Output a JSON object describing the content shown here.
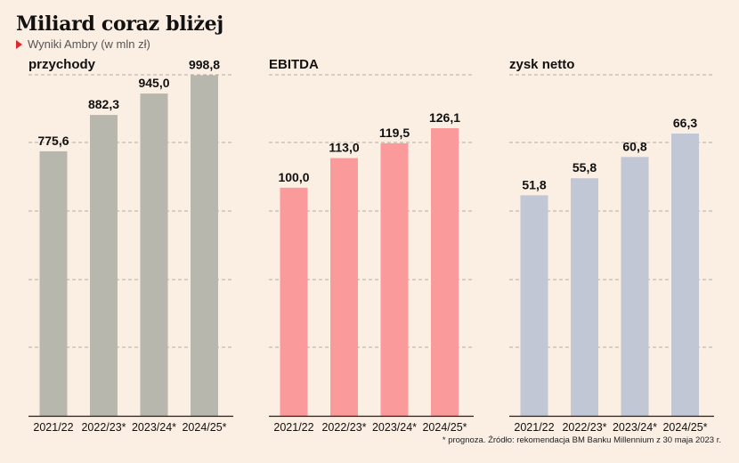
{
  "title": "Miliard coraz bliżej",
  "subtitle": "Wyniki Ambry (w mln zł)",
  "footnote": "* prognoza. Źródło: rekomendacja BM Banku Millennium z 30 maja 2023 r.",
  "chart_data": [
    {
      "type": "bar",
      "title": "przychody",
      "categories": [
        "2021/22",
        "2022/23*",
        "2023/24*",
        "2024/25*"
      ],
      "values": [
        775.6,
        882.3,
        945.0,
        998.8
      ],
      "labels": [
        "775,6",
        "882,3",
        "945,0",
        "998,8"
      ],
      "ylim": [
        0,
        1000
      ],
      "grid": true,
      "color": "#b8b7ae"
    },
    {
      "type": "bar",
      "title": "EBITDA",
      "categories": [
        "2021/22",
        "2022/23*",
        "2023/24*",
        "2024/25*"
      ],
      "values": [
        100.0,
        113.0,
        119.5,
        126.1
      ],
      "labels": [
        "100,0",
        "113,0",
        "119,5",
        "126,1"
      ],
      "ylim": [
        0,
        126.1
      ],
      "grid": true,
      "color": "#fb9a9b"
    },
    {
      "type": "bar",
      "title": "zysk netto",
      "categories": [
        "2021/22",
        "2022/23*",
        "2023/24*",
        "2024/25*"
      ],
      "values": [
        51.8,
        55.8,
        60.8,
        66.3
      ],
      "labels": [
        "51,8",
        "55,8",
        "60,8",
        "66,3"
      ],
      "ylim": [
        0,
        66.3
      ],
      "grid": true,
      "color": "#c2c7d6"
    }
  ]
}
